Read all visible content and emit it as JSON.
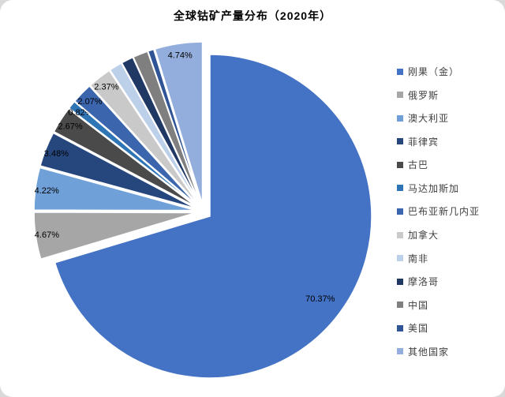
{
  "chart_data": {
    "type": "pie",
    "title": "全球钴矿产量分布（2020年）",
    "legend_position": "right",
    "labels": [
      "刚果（金）",
      "俄罗斯",
      "澳大利亚",
      "菲律宾",
      "古巴",
      "马达加斯加",
      "巴布亚新几内亚",
      "加拿大",
      "南非",
      "摩洛哥",
      "中国",
      "美国",
      "其他国家"
    ],
    "values": [
      70.37,
      4.67,
      4.22,
      3.48,
      2.67,
      0.82,
      2.07,
      2.37,
      1.3,
      1.2,
      1.5,
      0.59,
      4.74
    ],
    "value_labels": [
      "70.37%",
      "4.67%",
      "4.22%",
      "3.48%",
      "2.67%",
      "0.82%",
      "2.07%",
      "2.37%",
      "",
      "",
      "",
      "",
      "4.74%"
    ],
    "colors": [
      "#4472C4",
      "#A6A6A6",
      "#6FA0D8",
      "#26477E",
      "#4A4A4A",
      "#2E75B6",
      "#3B66AE",
      "#C9C9C9",
      "#BDD0E9",
      "#203864",
      "#7F7F7F",
      "#2F5597",
      "#93AEDC"
    ],
    "grid": false,
    "background": "#ffffff"
  }
}
